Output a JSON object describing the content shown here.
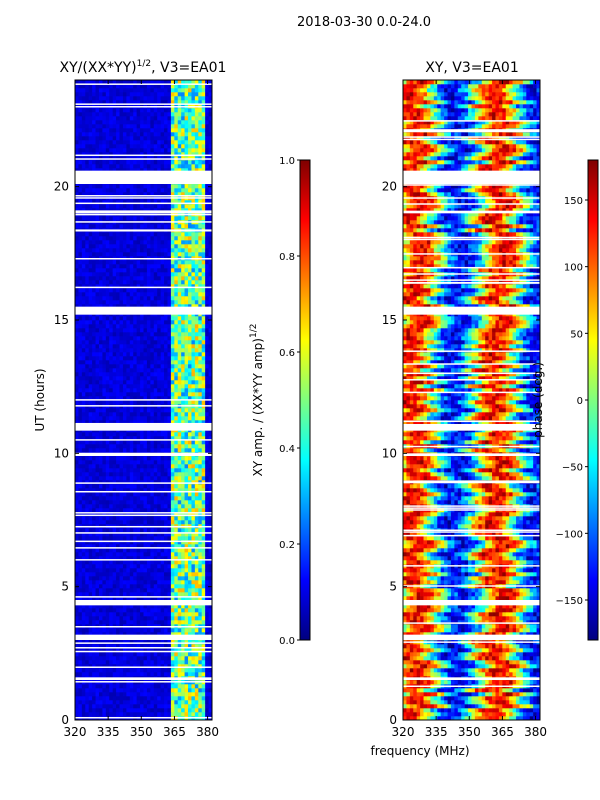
{
  "chart_data": [
    {
      "type": "heatmap",
      "suptitle": "2018-03-30 0.0-24.0",
      "title": "XY/(XX*YY)1/2, V3=EA01",
      "title_main": "XY/(XX*YY)",
      "title_exp": "1/2",
      "title_rest": ", V3=EA01",
      "xlabel": "",
      "ylabel": "UT (hours)",
      "xlim": [
        320,
        382
      ],
      "ylim": [
        0,
        24
      ],
      "xticks": [
        320,
        335,
        350,
        365,
        380
      ],
      "yticks": [
        0,
        5,
        10,
        15,
        20
      ],
      "colorbar": {
        "label": "XY amp. / (XX*YY amp)1/2",
        "label_main": "XY amp. / (XX*YY amp)",
        "label_exp": "1/2",
        "range": [
          0.0,
          1.0
        ],
        "ticks": [
          "0.0",
          "0.2",
          "0.4",
          "0.6",
          "0.8",
          "1.0"
        ],
        "colormap": "jet"
      },
      "blank_time_rows_hours": [
        [
          20.1,
          20.6
        ],
        [
          19.0,
          19.1
        ],
        [
          15.2,
          15.5
        ],
        [
          10.85,
          11.1
        ],
        [
          9.9,
          10.0
        ],
        [
          4.3,
          4.5
        ],
        [
          3.0,
          3.2
        ],
        [
          1.5,
          1.6
        ]
      ],
      "high_signal_band_mhz": [
        362,
        380
      ],
      "background_value": 0.05
    },
    {
      "type": "heatmap",
      "title": "XY, V3=EA01",
      "xlabel": "frequency (MHz)",
      "ylabel": "",
      "xlim": [
        320,
        382
      ],
      "ylim": [
        0,
        24
      ],
      "xticks": [
        320,
        335,
        350,
        365,
        380
      ],
      "yticks": [
        0,
        5,
        10,
        15,
        20
      ],
      "colorbar": {
        "label": "phase (deg.)",
        "range": [
          -180,
          180
        ],
        "ticks": [
          "−150",
          "−100",
          "−50",
          "0",
          "50",
          "100",
          "150"
        ],
        "tick_values": [
          -150,
          -100,
          -50,
          0,
          50,
          100,
          150
        ],
        "colormap": "jet"
      },
      "blank_time_rows_hours": [
        [
          20.1,
          20.6
        ],
        [
          19.0,
          19.1
        ],
        [
          15.2,
          15.5
        ],
        [
          10.85,
          11.1
        ],
        [
          9.9,
          10.0
        ],
        [
          4.3,
          4.5
        ],
        [
          3.0,
          3.2
        ],
        [
          1.5,
          1.6
        ]
      ]
    }
  ]
}
